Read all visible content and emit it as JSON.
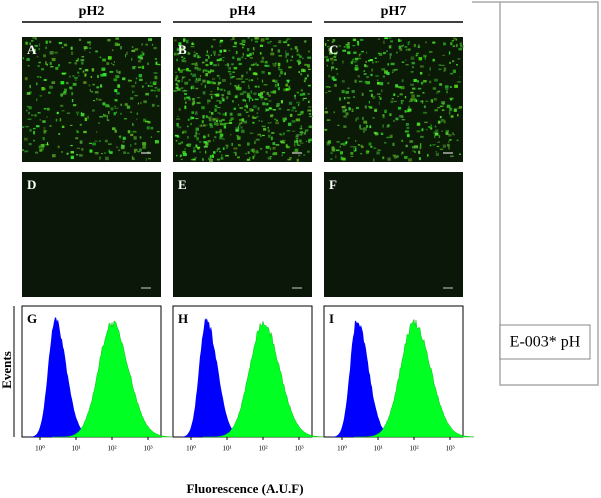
{
  "columns": [
    {
      "header": "pH2",
      "panels": [
        "A",
        "D",
        "G"
      ]
    },
    {
      "header": "pH4",
      "panels": [
        "B",
        "E",
        "H"
      ]
    },
    {
      "header": "pH7",
      "panels": [
        "C",
        "F",
        "I"
      ]
    }
  ],
  "histogram_ticks": [
    "10⁰",
    "10¹",
    "10²",
    "10³"
  ],
  "y_axis_label": "Events",
  "x_axis_label": "Fluorescence (A.U.F)",
  "side_label": "E-003* pH"
}
